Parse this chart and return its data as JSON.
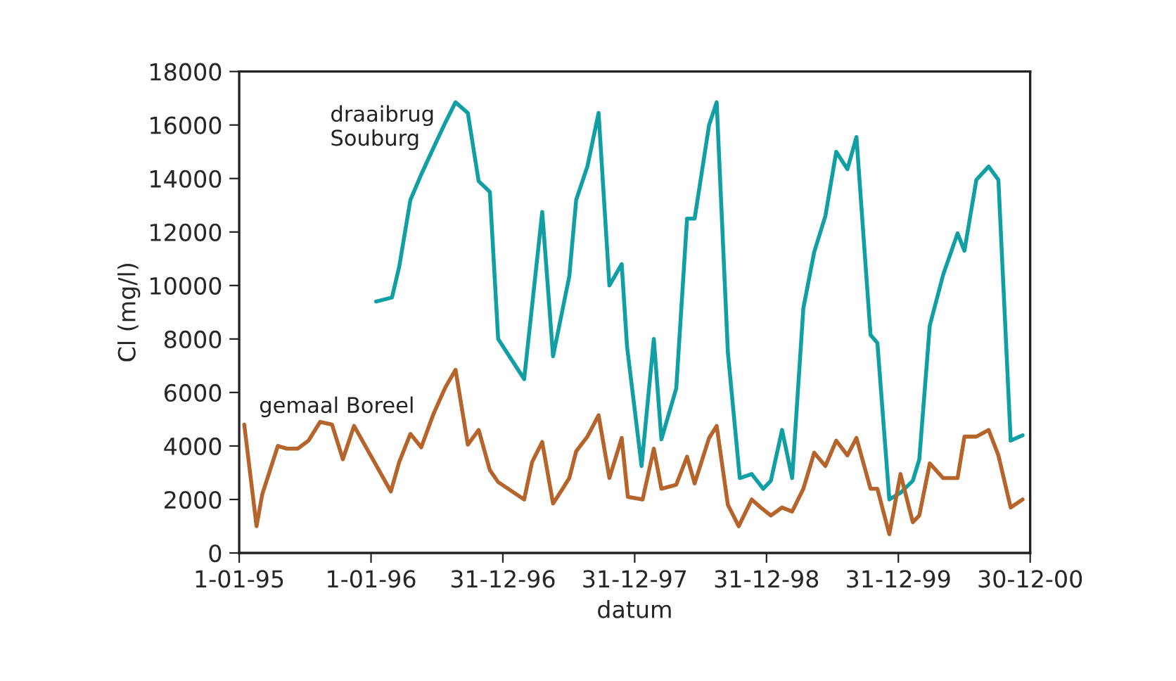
{
  "chart_data": {
    "type": "line",
    "xlabel": "datum",
    "ylabel": "Cl (mg/l)",
    "xlim": [
      "1995-01-01",
      "2000-12-30"
    ],
    "xticks": [
      {
        "value": "1995-01-01",
        "label": "1-01-95"
      },
      {
        "value": "1996-01-01",
        "label": "1-01-96"
      },
      {
        "value": "1996-12-31",
        "label": "31-12-96"
      },
      {
        "value": "1997-12-31",
        "label": "31-12-97"
      },
      {
        "value": "1998-12-31",
        "label": "31-12-98"
      },
      {
        "value": "1999-12-31",
        "label": "31-12-99"
      },
      {
        "value": "2000-12-30",
        "label": "30-12-00"
      }
    ],
    "ylim": [
      0,
      18000
    ],
    "yticks": [
      0,
      2000,
      4000,
      6000,
      8000,
      10000,
      12000,
      14000,
      16000,
      18000
    ],
    "grid": false,
    "legend": false,
    "marker": "none",
    "line_style": "solid",
    "series": [
      {
        "name": "draaibrug\nSouburg",
        "color": "#129fa3",
        "x": [
          "1996-01-15",
          "1996-02-28",
          "1996-03-19",
          "1996-04-19",
          "1996-05-19",
          "1996-06-22",
          "1996-07-25",
          "1996-08-22",
          "1996-09-25",
          "1996-10-25",
          "1996-11-25",
          "1996-12-18",
          "1997-02-28",
          "1997-04-19",
          "1997-05-19",
          "1997-07-03",
          "1997-07-22",
          "1997-08-22",
          "1997-09-22",
          "1997-10-22",
          "1997-11-25",
          "1997-12-10",
          "1998-01-19",
          "1998-02-22",
          "1998-03-15",
          "1998-04-25",
          "1998-05-25",
          "1998-06-15",
          "1998-07-25",
          "1998-08-15",
          "1998-09-15",
          "1998-10-18",
          "1998-11-20",
          "1998-12-22",
          "1999-01-12",
          "1999-02-12",
          "1999-03-12",
          "1999-04-12",
          "1999-05-12",
          "1999-06-12",
          "1999-07-12",
          "1999-08-12",
          "1999-09-06",
          "1999-10-15",
          "1999-11-03",
          "1999-12-06",
          "2000-01-06",
          "2000-02-09",
          "2000-02-27",
          "2000-03-27",
          "2000-05-03",
          "2000-06-12",
          "2000-07-01",
          "2000-08-03",
          "2000-09-06",
          "2000-10-03",
          "2000-11-06",
          "2000-12-09"
        ],
        "values": [
          9400,
          9550,
          10700,
          13200,
          14150,
          15150,
          16100,
          16850,
          16450,
          13900,
          13500,
          8000,
          6500,
          12750,
          7350,
          10350,
          13200,
          14450,
          16450,
          10000,
          10800,
          7700,
          3250,
          8000,
          4250,
          6150,
          12500,
          12500,
          16000,
          16850,
          7500,
          2800,
          2950,
          2400,
          2700,
          4600,
          2800,
          9150,
          11250,
          12600,
          15000,
          14350,
          15550,
          8150,
          7850,
          2000,
          2250,
          2700,
          3500,
          8500,
          10400,
          11950,
          11300,
          13950,
          14450,
          13950,
          4200,
          4400
        ]
      },
      {
        "name": "gemaal Boreel",
        "color": "#b5652b",
        "x": [
          "1995-01-15",
          "1995-02-18",
          "1995-03-06",
          "1995-04-18",
          "1995-05-13",
          "1995-06-12",
          "1995-07-12",
          "1995-08-13",
          "1995-09-15",
          "1995-10-15",
          "1995-11-15",
          "1996-02-25",
          "1996-03-19",
          "1996-04-19",
          "1996-05-19",
          "1996-06-22",
          "1996-07-25",
          "1996-08-22",
          "1996-09-25",
          "1996-10-25",
          "1996-11-25",
          "1996-12-18",
          "1997-02-28",
          "1997-03-22",
          "1997-04-19",
          "1997-05-19",
          "1997-06-12",
          "1997-07-03",
          "1997-07-22",
          "1997-08-22",
          "1997-09-22",
          "1997-10-22",
          "1997-11-25",
          "1997-12-12",
          "1998-01-22",
          "1998-02-22",
          "1998-03-15",
          "1998-04-25",
          "1998-05-25",
          "1998-06-15",
          "1998-07-25",
          "1998-08-15",
          "1998-09-15",
          "1998-10-15",
          "1998-11-20",
          "1998-12-15",
          "1999-01-12",
          "1999-02-12",
          "1999-03-12",
          "1999-04-12",
          "1999-05-12",
          "1999-06-12",
          "1999-07-12",
          "1999-08-12",
          "1999-09-06",
          "1999-10-15",
          "1999-11-03",
          "1999-12-06",
          "2000-01-06",
          "2000-02-09",
          "2000-02-27",
          "2000-03-27",
          "2000-05-03",
          "2000-06-12",
          "2000-07-01",
          "2000-08-03",
          "2000-09-06",
          "2000-10-03",
          "2000-11-06",
          "2000-12-09"
        ],
        "values": [
          4800,
          1000,
          2200,
          4000,
          3900,
          3900,
          4200,
          4900,
          4800,
          3500,
          4750,
          2300,
          3400,
          4450,
          3950,
          5200,
          6200,
          6850,
          4050,
          4600,
          3100,
          2650,
          2000,
          3400,
          4150,
          1850,
          2350,
          2800,
          3800,
          4350,
          5150,
          2800,
          4300,
          2100,
          2000,
          3900,
          2400,
          2550,
          3600,
          2600,
          4300,
          4750,
          1800,
          1000,
          2000,
          1700,
          1400,
          1700,
          1550,
          2400,
          3750,
          3250,
          4200,
          3650,
          4300,
          2400,
          2400,
          700,
          2950,
          1150,
          1400,
          3350,
          2800,
          2800,
          4350,
          4350,
          4600,
          3650,
          1700,
          2000
        ]
      }
    ]
  }
}
